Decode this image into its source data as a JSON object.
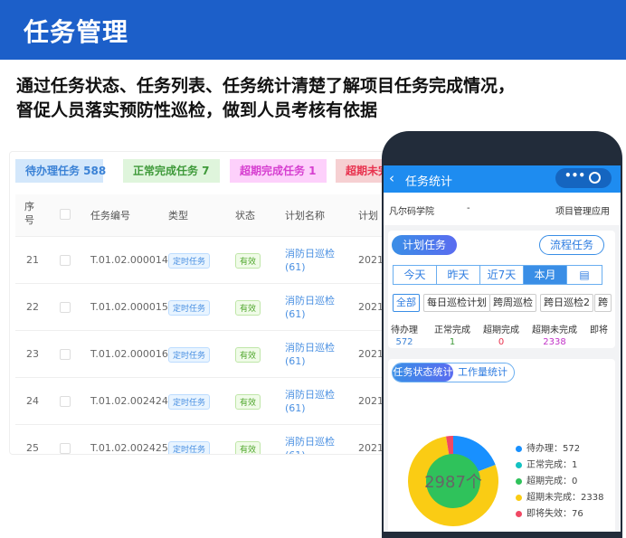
{
  "header": {
    "title": "任务管理"
  },
  "description": [
    "通过任务状态、任务列表、任务统计清楚了解项目任务完成情况，",
    "督促人员落实预防性巡检，做到人员考核有依据"
  ],
  "stats": [
    {
      "label": "待办理任务 588",
      "color": "#3b82d6",
      "bg": "#d3e7fb"
    },
    {
      "label": "正常完成任务 7",
      "color": "#3f9a3a",
      "bg": "#dff5dc"
    },
    {
      "label": "超期完成任务 1",
      "color": "#d63fd0",
      "bg": "#fdd0fb"
    },
    {
      "label": "超期未完",
      "color": "#e8324e",
      "bg": "#f6d0d2"
    }
  ],
  "table": {
    "headers": [
      "序号",
      "任务编号",
      "类型",
      "状态",
      "计划名称",
      "计划"
    ],
    "rows": [
      {
        "no": "21",
        "code": "T.01.02.000014",
        "type": "定时任务",
        "status": "有效",
        "plan": "消防日巡检",
        "plan_count": "(61)",
        "date": "2021-"
      },
      {
        "no": "22",
        "code": "T.01.02.000015",
        "type": "定时任务",
        "status": "有效",
        "plan": "消防日巡检",
        "plan_count": "(61)",
        "date": "2021-"
      },
      {
        "no": "23",
        "code": "T.01.02.000016",
        "type": "定时任务",
        "status": "有效",
        "plan": "消防日巡检",
        "plan_count": "(61)",
        "date": "2021-"
      },
      {
        "no": "24",
        "code": "T.01.02.002424",
        "type": "定时任务",
        "status": "有效",
        "plan": "消防日巡检",
        "plan_count": "(61)",
        "date": "2021-"
      },
      {
        "no": "25",
        "code": "T.01.02.002425",
        "type": "定时任务",
        "status": "有效",
        "plan": "消防日巡检",
        "plan_count": "(61)",
        "date": "2021-"
      }
    ]
  },
  "phone": {
    "nav_title": "任务统计",
    "org": "凡尔码学院",
    "org_sep": "-",
    "app": "项目管理应用",
    "tabs": [
      "计划任务",
      "流程任务"
    ],
    "periods": [
      "今天",
      "昨天",
      "近7天",
      "本月"
    ],
    "active_period": "本月",
    "chips": [
      "全部",
      "每日巡检计划",
      "跨周巡检",
      "跨日巡检2",
      "跨"
    ],
    "summary": [
      {
        "label": "待办理",
        "value": "572",
        "color": "#3b82d6"
      },
      {
        "label": "正常完成",
        "value": "1",
        "color": "#3f9a3a"
      },
      {
        "label": "超期完成",
        "value": "0",
        "color": "#e8324e"
      },
      {
        "label": "超期未完成",
        "value": "2338",
        "color": "#c233c8"
      },
      {
        "label": "即将",
        "value": "",
        "color": "#333"
      }
    ],
    "chart_tabs": [
      "任务状态统计",
      "工作量统计"
    ],
    "chart_data": {
      "type": "pie",
      "center_label": "2987个",
      "slices": [
        {
          "label": "待办理",
          "value": 572,
          "color": "#1890ff"
        },
        {
          "label": "正常完成",
          "value": 1,
          "color": "#13c2c2"
        },
        {
          "label": "超期完成",
          "value": 0,
          "color": "#2fc25b"
        },
        {
          "label": "超期未完成",
          "value": 2338,
          "color": "#facc14"
        },
        {
          "label": "即将失效",
          "value": 76,
          "color": "#f04864"
        }
      ],
      "legend_text": [
        "待办理：572",
        "正常完成：1",
        "超期完成：0",
        "超期未完成：2338",
        "即将失效：76"
      ],
      "legend_position": "right"
    }
  }
}
